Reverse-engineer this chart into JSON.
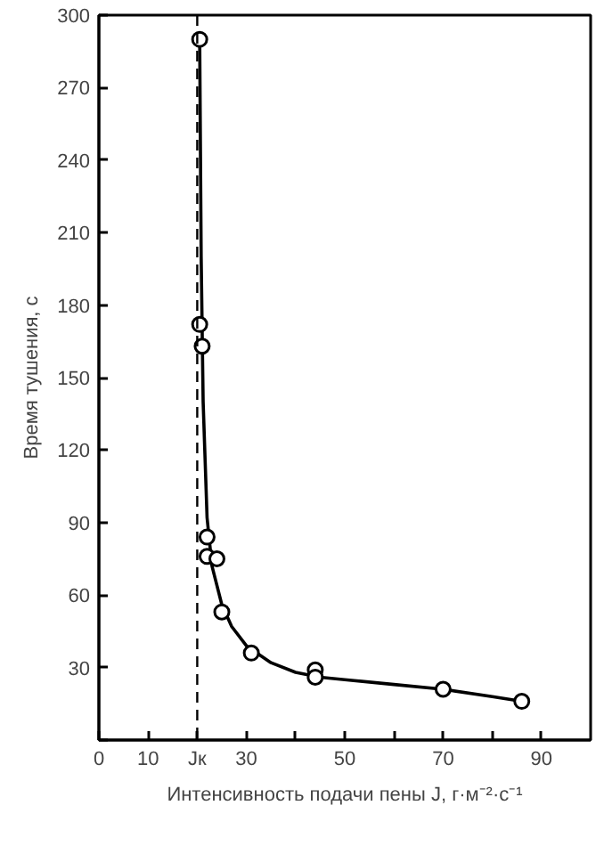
{
  "chart_data": {
    "type": "scatter",
    "xlabel": "Интенсивность подачи пены J, г·м⁻²·с⁻¹",
    "ylabel": "Время тушения, с",
    "xlim": [
      0,
      100
    ],
    "ylim": [
      0,
      300
    ],
    "xticks": [
      0,
      10,
      {
        "value": 20,
        "label": "Jк"
      },
      30,
      {
        "value": 40,
        "label": null
      },
      50,
      {
        "value": 60,
        "label": null
      },
      70,
      {
        "value": 80,
        "label": null
      },
      90
    ],
    "yticks": [
      {
        "value": 0,
        "label": null
      },
      30,
      60,
      90,
      120,
      150,
      180,
      210,
      240,
      270,
      300
    ],
    "series": [
      {
        "color": "#000000",
        "marker": "circle",
        "x": [
          20.5,
          20.5,
          21,
          22,
          22,
          24,
          25,
          31,
          44,
          44,
          70,
          86
        ],
        "values": [
          290,
          172,
          163,
          84,
          76,
          75,
          53,
          36,
          29,
          26,
          21,
          16
        ]
      },
      {
        "type": "line",
        "color": "#000000",
        "line_style": "solid",
        "x": [
          20.5,
          20.8,
          21.2,
          22,
          23,
          25,
          27,
          30,
          35,
          40,
          45,
          50,
          60,
          70,
          80,
          86
        ],
        "values": [
          290,
          200,
          140,
          92,
          72,
          56,
          47,
          39,
          32,
          28,
          26,
          25,
          23,
          21,
          18,
          16
        ]
      }
    ],
    "ref_lines": [
      {
        "axis": "x",
        "value": 20,
        "line_style": "dashed",
        "color": "#000000"
      }
    ],
    "grid": false
  }
}
